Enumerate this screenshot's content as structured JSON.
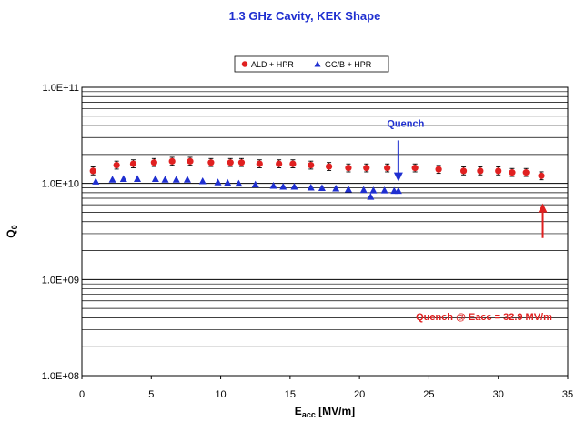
{
  "chart_data": {
    "type": "scatter",
    "title": "1.3 GHz Cavity, KEK Shape",
    "xlabel_main": "E",
    "xlabel_sub": "acc",
    "xlabel_unit": " [MV/m]",
    "ylabel_main": "Q",
    "ylabel_sub": "0",
    "x_scale": "linear",
    "y_scale": "log",
    "xlim": [
      0,
      35
    ],
    "ylim": [
      100000000,
      100000000000
    ],
    "x_ticks": [
      0,
      5,
      10,
      15,
      20,
      25,
      30,
      35
    ],
    "x_tick_labels": [
      "0",
      "5",
      "10",
      "15",
      "20",
      "25",
      "30",
      "35"
    ],
    "y_ticks": [
      100000000,
      1000000000,
      10000000000,
      100000000000
    ],
    "y_tick_labels": [
      "1.0E+08",
      "1.0E+09",
      "1.0E+10",
      "1.0E+11"
    ],
    "grid": "horizontal at major and minor log ticks",
    "legend_position": "top-center",
    "series": [
      {
        "name": "ALD + HPR",
        "marker": "circle",
        "color": "#e02020",
        "errorbars": true,
        "points": [
          [
            0.8,
            13500000000
          ],
          [
            2.5,
            15500000000
          ],
          [
            3.7,
            16000000000
          ],
          [
            5.2,
            16500000000
          ],
          [
            6.5,
            17000000000
          ],
          [
            7.8,
            17000000000
          ],
          [
            9.3,
            16500000000
          ],
          [
            10.7,
            16500000000
          ],
          [
            11.5,
            16500000000
          ],
          [
            12.8,
            16000000000
          ],
          [
            14.2,
            16000000000
          ],
          [
            15.2,
            16000000000
          ],
          [
            16.5,
            15500000000
          ],
          [
            17.8,
            15000000000
          ],
          [
            19.2,
            14500000000
          ],
          [
            20.5,
            14500000000
          ],
          [
            22.0,
            14500000000
          ],
          [
            24.0,
            14500000000
          ],
          [
            25.7,
            14000000000
          ],
          [
            27.5,
            13500000000
          ],
          [
            28.7,
            13500000000
          ],
          [
            30.0,
            13500000000
          ],
          [
            31.0,
            13000000000
          ],
          [
            32.0,
            13000000000
          ],
          [
            33.1,
            12000000000
          ]
        ]
      },
      {
        "name": "GC/B + HPR",
        "marker": "triangle",
        "color": "#1f2fd0",
        "errorbars": false,
        "points": [
          [
            1.0,
            10500000000
          ],
          [
            2.2,
            11000000000
          ],
          [
            3.0,
            11200000000
          ],
          [
            4.0,
            11200000000
          ],
          [
            5.3,
            11200000000
          ],
          [
            6.0,
            11000000000
          ],
          [
            6.8,
            11000000000
          ],
          [
            7.6,
            11000000000
          ],
          [
            8.7,
            10600000000
          ],
          [
            9.8,
            10300000000
          ],
          [
            10.5,
            10200000000
          ],
          [
            11.3,
            10000000000
          ],
          [
            12.5,
            9800000000
          ],
          [
            13.8,
            9500000000
          ],
          [
            14.5,
            9300000000
          ],
          [
            15.3,
            9300000000
          ],
          [
            16.5,
            9100000000
          ],
          [
            17.3,
            9000000000
          ],
          [
            18.3,
            8900000000
          ],
          [
            19.2,
            8700000000
          ],
          [
            20.3,
            8600000000
          ],
          [
            20.8,
            7300000000
          ],
          [
            21.0,
            8500000000
          ],
          [
            21.8,
            8500000000
          ],
          [
            22.5,
            8400000000
          ],
          [
            22.8,
            8400000000
          ]
        ]
      }
    ],
    "annotations": [
      {
        "text": "Quench",
        "color": "#1f2fd0",
        "arrow_tip": [
          22.8,
          10000000000
        ],
        "arrow_tail": [
          22.8,
          28000000000
        ]
      },
      {
        "text": "Quench @ Eacc = 32.9 MV/m",
        "color": "#e02020",
        "arrow_tip": [
          33.2,
          6200000000
        ],
        "arrow_tail": [
          33.2,
          2700000000
        ]
      }
    ]
  }
}
